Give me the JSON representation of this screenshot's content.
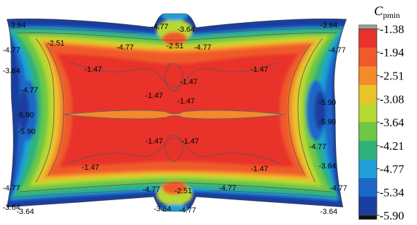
{
  "chart_data": {
    "type": "heatmap",
    "title": "",
    "colorbar": {
      "label_main": "C",
      "label_sub": "pmin",
      "ticks": [
        "-1.38",
        "-1.94",
        "-2.51",
        "-3.08",
        "-3.64",
        "-4.21",
        "-4.77",
        "-5.34",
        "-5.90"
      ],
      "range": [
        -5.9,
        -1.38
      ],
      "colors": [
        "#e8322a",
        "#f05a2a",
        "#f58a2a",
        "#e8c32a",
        "#b8d832",
        "#6cc845",
        "#2fb27a",
        "#1fa0d8",
        "#1a68c8",
        "#1a3e9e"
      ]
    },
    "contour_labels": [
      "-3.64",
      "-4.77",
      "-3.64",
      "-3.64",
      "-4.77",
      "-2.51",
      "-4.77",
      "-2.51",
      "-4.77",
      "-4.77",
      "-3.64",
      "-1.47",
      "-1.47",
      "-4.77",
      "-1.47",
      "-1.47",
      "-1.47",
      "-5.90",
      "-5.90",
      "-5.90",
      "-5.90",
      "-1.47",
      "-1.47",
      "-4.77",
      "-1.47",
      "-1.47",
      "-3.64",
      "-3.64",
      "-4.77",
      "-4.77",
      "-2.51",
      "-4.77",
      "-4.77",
      "-3.64",
      "-3.64",
      "-4.77",
      "-3.64"
    ]
  }
}
